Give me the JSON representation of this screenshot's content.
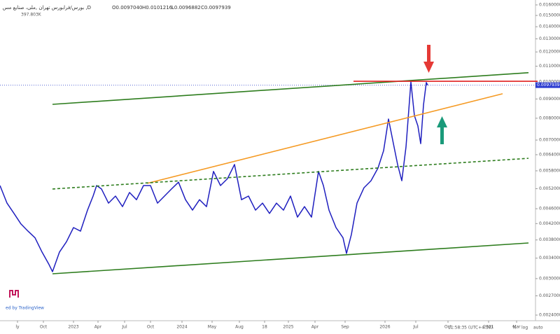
{
  "chart_data": {
    "type": "line",
    "title": "بورس/فرابورس تهران ,ملی، صنایع مس ,D",
    "ohlc": [
      "O0.0097040",
      "H0.0101216",
      "L0.0096882",
      "C0.0097939"
    ],
    "volume_label": "397.803K",
    "log_scale": true,
    "xlim": [
      0,
      765
    ],
    "ylim": [
      0.0024,
      0.016
    ],
    "xticks": [
      {
        "value": 25,
        "label": "ly"
      },
      {
        "value": 62,
        "label": "Oct"
      },
      {
        "value": 105,
        "label": "2023"
      },
      {
        "value": 140,
        "label": "Apr"
      },
      {
        "value": 178,
        "label": "Jul"
      },
      {
        "value": 215,
        "label": "Oct"
      },
      {
        "value": 260,
        "label": "2024"
      },
      {
        "value": 303,
        "label": "May"
      },
      {
        "value": 342,
        "label": "Aug"
      },
      {
        "value": 378,
        "label": "18"
      },
      {
        "value": 412,
        "label": "2025"
      },
      {
        "value": 450,
        "label": "Apr"
      },
      {
        "value": 493,
        "label": "Sep"
      },
      {
        "value": 550,
        "label": "2026"
      },
      {
        "value": 594,
        "label": "Jul"
      },
      {
        "value": 640,
        "label": "Oct"
      },
      {
        "value": 698,
        "label": "2021"
      },
      {
        "value": 738,
        "label": "Mar"
      }
    ],
    "yticks": [
      {
        "value": 0.016,
        "label": "0.0160000"
      },
      {
        "value": 0.015,
        "label": "0.0150000"
      },
      {
        "value": 0.014,
        "label": "0.0140000"
      },
      {
        "value": 0.013,
        "label": "0.0130000"
      },
      {
        "value": 0.012,
        "label": "0.0120000"
      },
      {
        "value": 0.011,
        "label": "0.0110000"
      },
      {
        "value": 0.01,
        "label": "0.0100000"
      },
      {
        "value": 0.009,
        "label": "0.0090000"
      },
      {
        "value": 0.008,
        "label": "0.0080000"
      },
      {
        "value": 0.007,
        "label": "0.0070000"
      },
      {
        "value": 0.0064,
        "label": "0.0064000"
      },
      {
        "value": 0.0058,
        "label": "0.0058000"
      },
      {
        "value": 0.0052,
        "label": "0.0052000"
      },
      {
        "value": 0.0046,
        "label": "0.0046000"
      },
      {
        "value": 0.0042,
        "label": "0.0042000"
      },
      {
        "value": 0.0038,
        "label": "0.0038000"
      },
      {
        "value": 0.0034,
        "label": "0.0034000"
      },
      {
        "value": 0.003,
        "label": "0.0030000"
      },
      {
        "value": 0.0027,
        "label": "0.0027000"
      },
      {
        "value": 0.0024,
        "label": "0.0024000"
      }
    ],
    "last_price": 0.0097939,
    "x": [
      0,
      10,
      20,
      30,
      40,
      50,
      60,
      70,
      75,
      85,
      95,
      105,
      115,
      125,
      133,
      138,
      145,
      155,
      165,
      175,
      185,
      195,
      205,
      215,
      225,
      235,
      245,
      255,
      265,
      275,
      285,
      295,
      305,
      315,
      325,
      335,
      345,
      355,
      365,
      375,
      385,
      395,
      405,
      415,
      425,
      435,
      445,
      455,
      462,
      470,
      480,
      490,
      495,
      502,
      510,
      520,
      530,
      540,
      548,
      555,
      562,
      568,
      574,
      580,
      587,
      592,
      597,
      601,
      605,
      609,
      611
    ],
    "series": [
      {
        "color": "#1f1fbf",
        "values": [
          0.0053,
          0.00476,
          0.00447,
          0.00419,
          0.00401,
          0.00385,
          0.00353,
          0.00327,
          0.00313,
          0.00353,
          0.00376,
          0.0041,
          0.00401,
          0.00456,
          0.00497,
          0.0053,
          0.00519,
          0.00476,
          0.00497,
          0.00466,
          0.00508,
          0.00486,
          0.0053,
          0.0053,
          0.00476,
          0.00497,
          0.00519,
          0.00541,
          0.00486,
          0.00456,
          0.00486,
          0.00466,
          0.00578,
          0.0053,
          0.00553,
          0.00603,
          0.00486,
          0.00497,
          0.00456,
          0.00476,
          0.00447,
          0.00476,
          0.00456,
          0.00497,
          0.00437,
          0.00466,
          0.00437,
          0.00578,
          0.0053,
          0.00456,
          0.0041,
          0.00385,
          0.0035,
          0.00393,
          0.00476,
          0.00523,
          0.00546,
          0.0059,
          0.00656,
          0.00796,
          0.00685,
          0.00603,
          0.00546,
          0.00671,
          0.00999,
          0.00813,
          0.00763,
          0.00685,
          0.00868,
          0.00995,
          0.0097939
        ]
      }
    ],
    "trendlines": [
      {
        "color": "#2e7d1e",
        "dashed": false,
        "x": [
          75,
          755
        ],
        "values": [
          0.00871,
          0.01057
        ]
      },
      {
        "color": "#f59a23",
        "dashed": false,
        "x": [
          210,
          718
        ],
        "values": [
          0.00537,
          0.00929
        ]
      },
      {
        "color": "#e02020",
        "dashed": false,
        "x": [
          505,
          768
        ],
        "values": [
          0.01003,
          0.01003
        ]
      },
      {
        "color": "#2e7d1e",
        "dashed": true,
        "x": [
          75,
          755
        ],
        "values": [
          0.00519,
          0.00626
        ]
      },
      {
        "color": "#2e7d1e",
        "dashed": false,
        "x": [
          75,
          755
        ],
        "values": [
          0.00309,
          0.00373
        ]
      }
    ],
    "status": [
      "11:58:35 (UTC+4:30)",
      "%",
      "log",
      "auto"
    ],
    "watermark": "ed by TradingView"
  }
}
